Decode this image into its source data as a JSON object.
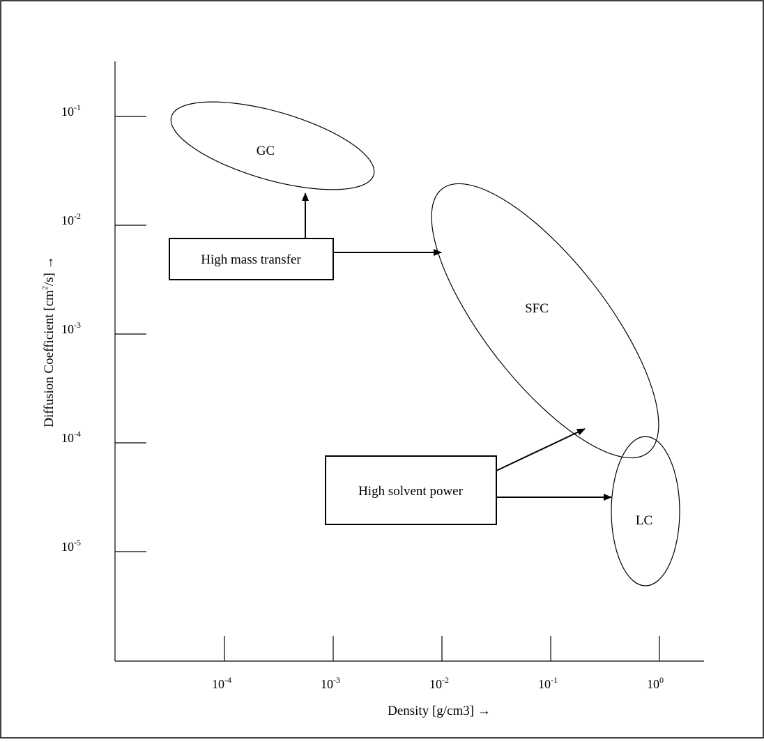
{
  "chart_data": {
    "type": "diagram",
    "xlabel": "Density [g/cm3] →",
    "ylabel_parts": {
      "before": "Diffusion Coefficient [cm",
      "sup": "2",
      "after": "/s] →"
    },
    "x_scale": "log",
    "y_scale": "log",
    "x_ticks": [
      {
        "base": "10",
        "exp": "-4"
      },
      {
        "base": "10",
        "exp": "-3"
      },
      {
        "base": "10",
        "exp": "-2"
      },
      {
        "base": "10",
        "exp": "-1"
      },
      {
        "base": "10",
        "exp": "0"
      }
    ],
    "y_ticks": [
      {
        "base": "10",
        "exp": "-1"
      },
      {
        "base": "10",
        "exp": "-2"
      },
      {
        "base": "10",
        "exp": "-3"
      },
      {
        "base": "10",
        "exp": "-4"
      },
      {
        "base": "10",
        "exp": "-5"
      }
    ],
    "regions": [
      "GC",
      "SFC",
      "LC"
    ],
    "callouts": [
      {
        "text": "High mass transfer",
        "points_to": [
          "GC",
          "SFC"
        ]
      },
      {
        "text": "High solvent power",
        "points_to": [
          "SFC",
          "LC"
        ]
      }
    ]
  }
}
